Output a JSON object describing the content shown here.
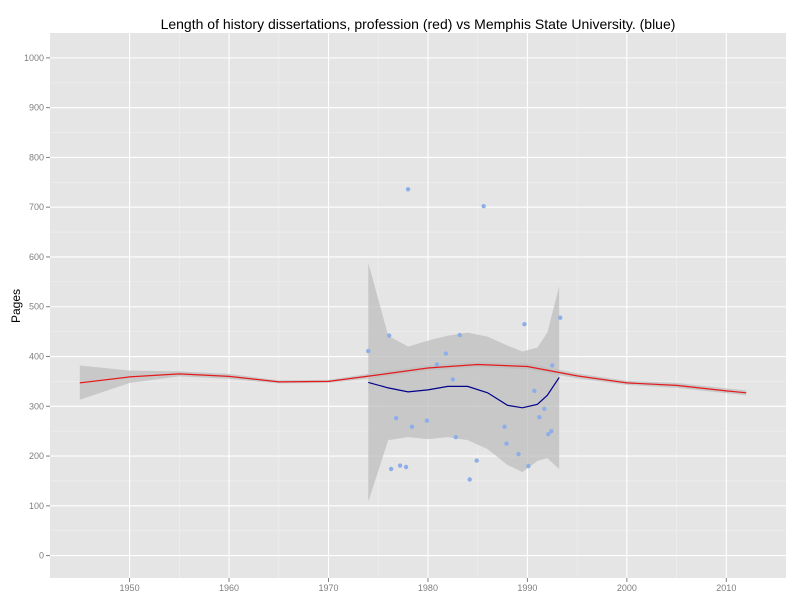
{
  "chart_data": {
    "type": "scatter",
    "title": "Length of history dissertations, profession (red) vs Memphis State University. (blue)",
    "xlabel": "",
    "ylabel": "Pages",
    "xlim": [
      1942,
      2016
    ],
    "ylim": [
      -45,
      1050
    ],
    "x_ticks": [
      1950,
      1960,
      1970,
      1980,
      1990,
      2000,
      2010
    ],
    "y_ticks": [
      0,
      100,
      200,
      300,
      400,
      500,
      600,
      700,
      800,
      900,
      1000
    ],
    "grid": true,
    "legend": "none",
    "colors": {
      "panel": "#e5e5e5",
      "grid_major": "#ffffff",
      "grid_minor": "#f0f0f0",
      "band": "#bdbdbd",
      "profession": "#e41a1c",
      "memphis": "#00008b",
      "points": "#8eaee8"
    },
    "series": [
      {
        "kind": "points",
        "color_key": "points",
        "x": [
          1974,
          1976.1,
          1976.3,
          1976.8,
          1977.2,
          1977.8,
          1978.0,
          1978.4,
          1979.9,
          1980.9,
          1981.8,
          1982.5,
          1982.8,
          1983.2,
          1984.2,
          1984.9,
          1985.6,
          1987.7,
          1987.9,
          1989.1,
          1989.7,
          1990.1,
          1990.7,
          1991.2,
          1991.7,
          1992.1,
          1992.4,
          1992.5,
          1993.3
        ],
        "y": [
          411,
          442,
          174,
          276,
          181,
          178,
          736,
          259,
          271,
          384,
          406,
          354,
          238,
          443,
          153,
          191,
          702,
          259,
          225,
          204,
          465,
          180,
          331,
          278,
          295,
          244,
          250,
          382,
          478
        ]
      },
      {
        "kind": "smooth",
        "color_key": "profession",
        "x": [
          1945,
          1950,
          1955,
          1960,
          1965,
          1970,
          1975,
          1980,
          1985,
          1990,
          1995,
          2000,
          2005,
          2010,
          2012
        ],
        "y": [
          347,
          359,
          365,
          360,
          349,
          350,
          363,
          377,
          384,
          380,
          361,
          347,
          342,
          331,
          327
        ],
        "band_upper": [
          382,
          372,
          370,
          365,
          352,
          353,
          368,
          382,
          389,
          386,
          366,
          351,
          347,
          336,
          332
        ],
        "band_lower": [
          313,
          347,
          360,
          355,
          346,
          347,
          358,
          372,
          379,
          374,
          356,
          343,
          337,
          326,
          322
        ]
      },
      {
        "kind": "smooth",
        "color_key": "memphis",
        "x": [
          1974,
          1976,
          1978,
          1980,
          1982,
          1984,
          1986,
          1988,
          1989.5,
          1991,
          1992,
          1993.2
        ],
        "y": [
          348,
          337,
          329,
          333,
          340,
          340,
          327,
          302,
          297,
          304,
          322,
          358
        ],
        "band_upper": [
          588,
          442,
          420,
          432,
          442,
          448,
          440,
          422,
          410,
          418,
          448,
          541
        ],
        "band_lower": [
          108,
          232,
          238,
          234,
          238,
          232,
          214,
          182,
          168,
          190,
          196,
          174
        ]
      }
    ]
  }
}
